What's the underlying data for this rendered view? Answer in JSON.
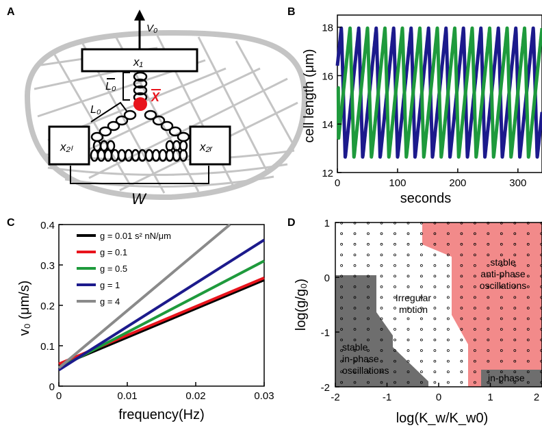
{
  "panels": {
    "a": {
      "letter": "A",
      "x1_label": "x₁",
      "x2l_label": "x₂ₗ",
      "x2r_label": "x₂ᵣ",
      "v0_label": "V₀",
      "lbar_label": "L₀",
      "l0_label": "L₀",
      "xbar_label": "X",
      "w_label": "W"
    },
    "b": {
      "letter": "B"
    },
    "c": {
      "letter": "C"
    },
    "d": {
      "letter": "D"
    }
  },
  "colors": {
    "blue": "#1c1a8c",
    "green": "#1e9a3c",
    "black": "#000000",
    "red": "#e8141c",
    "gray": "#8a8a8a",
    "anti_phase": "#f28a8a",
    "in_phase": "#6e6e6e"
  },
  "chart_data": [
    {
      "type": "diagram",
      "labels": [
        "x₁",
        "x₂ₗ",
        "x₂ᵣ",
        "V₀",
        "L₀",
        "L₀",
        "X",
        "W"
      ]
    },
    {
      "type": "line",
      "xlabel": "seconds",
      "ylabel": "cell length (μm)",
      "xlim": [
        0,
        340
      ],
      "ylim": [
        12,
        18.5
      ],
      "xticks": [
        0,
        100,
        200,
        300
      ],
      "yticks": [
        12,
        14,
        16,
        18
      ],
      "series": [
        {
          "color": "#1c1a8c",
          "period": 29,
          "min": 12.6,
          "max": 18.0,
          "phase_start": 0.55
        },
        {
          "color": "#1e9a3c",
          "period": 29,
          "min": 12.6,
          "max": 18.0,
          "phase_start": 0.05,
          "start_value": 15.5
        }
      ]
    },
    {
      "type": "line",
      "xlabel": "frequency(Hz)",
      "ylabel": "v₀ (μm/s)",
      "xlim": [
        0,
        0.03
      ],
      "ylim": [
        0,
        0.4
      ],
      "xticks": [
        0,
        0.01,
        0.02,
        0.03
      ],
      "xtick_labels": [
        "0",
        "0.01",
        "0.02",
        "0.03"
      ],
      "yticks": [
        0,
        0.1,
        0.2,
        0.3,
        0.4
      ],
      "ytick_labels": [
        "0",
        "0.1",
        "0.2",
        "0.3",
        "0.4"
      ],
      "series": [
        {
          "name": "g = 0.01 s² nN/μm",
          "color": "#000000",
          "x": [
            0,
            0.03
          ],
          "y": [
            0.05,
            0.263
          ]
        },
        {
          "name": "g = 0.1",
          "color": "#e8141c",
          "x": [
            0,
            0.03
          ],
          "y": [
            0.055,
            0.268
          ]
        },
        {
          "name": "g = 0.5",
          "color": "#1e9a3c",
          "x": [
            0,
            0.03
          ],
          "y": [
            0.045,
            0.31
          ]
        },
        {
          "name": "g = 1",
          "color": "#1c1a8c",
          "x": [
            0,
            0.03
          ],
          "y": [
            0.04,
            0.362
          ]
        },
        {
          "name": "g = 4",
          "color": "#8a8a8a",
          "x": [
            0,
            0.025
          ],
          "y": [
            0.045,
            0.4
          ]
        }
      ]
    },
    {
      "type": "heatmap",
      "xlabel": "log(K_w/K_w0)",
      "ylabel": "log(g/g₀)",
      "xlim": [
        -2,
        2
      ],
      "ylim": [
        -2,
        1
      ],
      "xticks": [
        -2,
        -1,
        0,
        1,
        2
      ],
      "xtick_labels": [
        "-2",
        "-1",
        "0",
        "1",
        "2"
      ],
      "yticks": [
        -2,
        -1,
        0,
        1
      ],
      "ytick_labels": [
        "-2",
        "-1",
        "0",
        "1"
      ],
      "regions": [
        {
          "label": [
            "stable",
            "anti-phase",
            "oscillations"
          ],
          "color": "#f28a8a"
        },
        {
          "label": [
            "Irregular",
            "motion"
          ],
          "color": "#ffffff"
        },
        {
          "label": [
            "stable",
            "in-phase",
            "oscillations"
          ],
          "color": "#6e6e6e"
        },
        {
          "label": [
            "in-phase"
          ],
          "color": "#6e6e6e"
        }
      ]
    }
  ]
}
